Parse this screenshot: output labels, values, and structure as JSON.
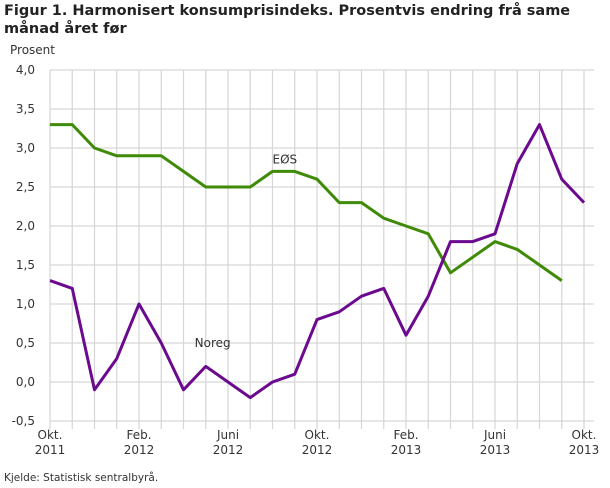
{
  "title": "Figur 1. Harmonisert konsumprisindeks. Prosentvis endring frå same månad året før",
  "source": "Kjelde: Statistisk sentralbyrå.",
  "chart_data": {
    "type": "line",
    "title": "Figur 1. Harmonisert konsumprisindeks. Prosentvis endring frå same månad året før",
    "ylabel": "Prosent",
    "xlabel": "",
    "ylim": [
      -0.5,
      4.0
    ],
    "yticks": [
      "-0,5",
      "0,0",
      "0,5",
      "1,0",
      "1,5",
      "2,0",
      "2,5",
      "3,0",
      "3,5",
      "4,0"
    ],
    "ytick_values": [
      -0.5,
      0,
      0.5,
      1,
      1.5,
      2,
      2.5,
      3,
      3.5,
      4
    ],
    "x": [
      "2011-10",
      "2011-11",
      "2011-12",
      "2012-01",
      "2012-02",
      "2012-03",
      "2012-04",
      "2012-05",
      "2012-06",
      "2012-07",
      "2012-08",
      "2012-09",
      "2012-10",
      "2012-11",
      "2012-12",
      "2013-01",
      "2013-02",
      "2013-03",
      "2013-04",
      "2013-05",
      "2013-06",
      "2013-07",
      "2013-08",
      "2013-09",
      "2013-10"
    ],
    "xticks": [
      {
        "index": 0,
        "line1": "Okt.",
        "line2": "2011"
      },
      {
        "index": 4,
        "line1": "Feb.",
        "line2": "2012"
      },
      {
        "index": 8,
        "line1": "Juni",
        "line2": "2012"
      },
      {
        "index": 12,
        "line1": "Okt.",
        "line2": "2012"
      },
      {
        "index": 16,
        "line1": "Feb.",
        "line2": "2013"
      },
      {
        "index": 20,
        "line1": "Juni",
        "line2": "2013"
      },
      {
        "index": 24,
        "line1": "Okt.",
        "line2": "2013"
      }
    ],
    "grid": true,
    "series": [
      {
        "name": "EØS",
        "color": "#3f8a06",
        "label_index": 10,
        "label_value": 2.85,
        "values": [
          3.3,
          3.3,
          3.0,
          2.9,
          2.9,
          2.9,
          2.7,
          2.5,
          2.5,
          2.5,
          2.7,
          2.7,
          2.6,
          2.3,
          2.3,
          2.1,
          2.0,
          1.9,
          1.4,
          1.6,
          1.8,
          1.7,
          1.5,
          1.3,
          null
        ]
      },
      {
        "name": "Noreg",
        "color": "#6b0a8f",
        "label_index": 6.5,
        "label_value": 0.5,
        "values": [
          1.3,
          1.2,
          -0.1,
          0.3,
          1.0,
          0.5,
          -0.1,
          0.2,
          0.0,
          -0.2,
          0.0,
          0.1,
          0.8,
          0.9,
          1.1,
          1.2,
          0.6,
          1.1,
          1.8,
          1.8,
          1.9,
          2.8,
          3.3,
          2.6,
          2.3
        ]
      }
    ]
  }
}
